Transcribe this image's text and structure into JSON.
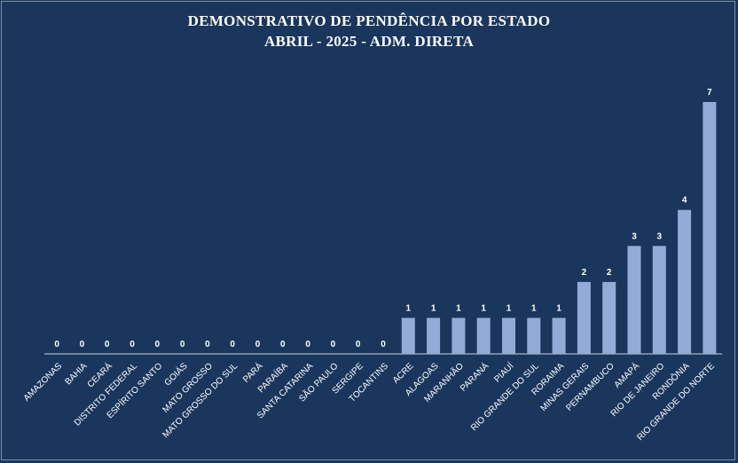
{
  "colors": {
    "background": "#1a365d",
    "bar": "#91acd6",
    "text": "#ffffff",
    "axis": "#c9d3e3"
  },
  "chart_data": {
    "type": "bar",
    "title": "DEMONSTRATIVO DE PENDÊNCIA POR ESTADO",
    "subtitle": "ABRIL - 2025 - ADM. DIRETA",
    "xlabel": "",
    "ylabel": "",
    "grid": false,
    "legend": "none",
    "ylim": [
      0,
      7
    ],
    "categories": [
      "AMAZONAS",
      "BAHIA",
      "CEARÁ",
      "DISTRITO FEDERAL",
      "ESPÍRITO SANTO",
      "GOIÁS",
      "MATO GROSSO",
      "MATO GROSSO DO SUL",
      "PARÁ",
      "PARAÍBA",
      "SANTA CATARINA",
      "SÃO PAULO",
      "SERGIPE",
      "TOCANTINS",
      "ACRE",
      "ALAGOAS",
      "MARANHÃO",
      "PARANÁ",
      "PIAUÍ",
      "RIO GRANDE DO SUL",
      "RORAIMA",
      "MINAS GERAIS",
      "PERNAMBUCO",
      "AMAPÁ",
      "RIO DE JANEIRO",
      "RONDÔNIA",
      "RIO GRANDE DO NORTE"
    ],
    "values": [
      0,
      0,
      0,
      0,
      0,
      0,
      0,
      0,
      0,
      0,
      0,
      0,
      0,
      0,
      1,
      1,
      1,
      1,
      1,
      1,
      1,
      2,
      2,
      3,
      3,
      4,
      7
    ]
  }
}
